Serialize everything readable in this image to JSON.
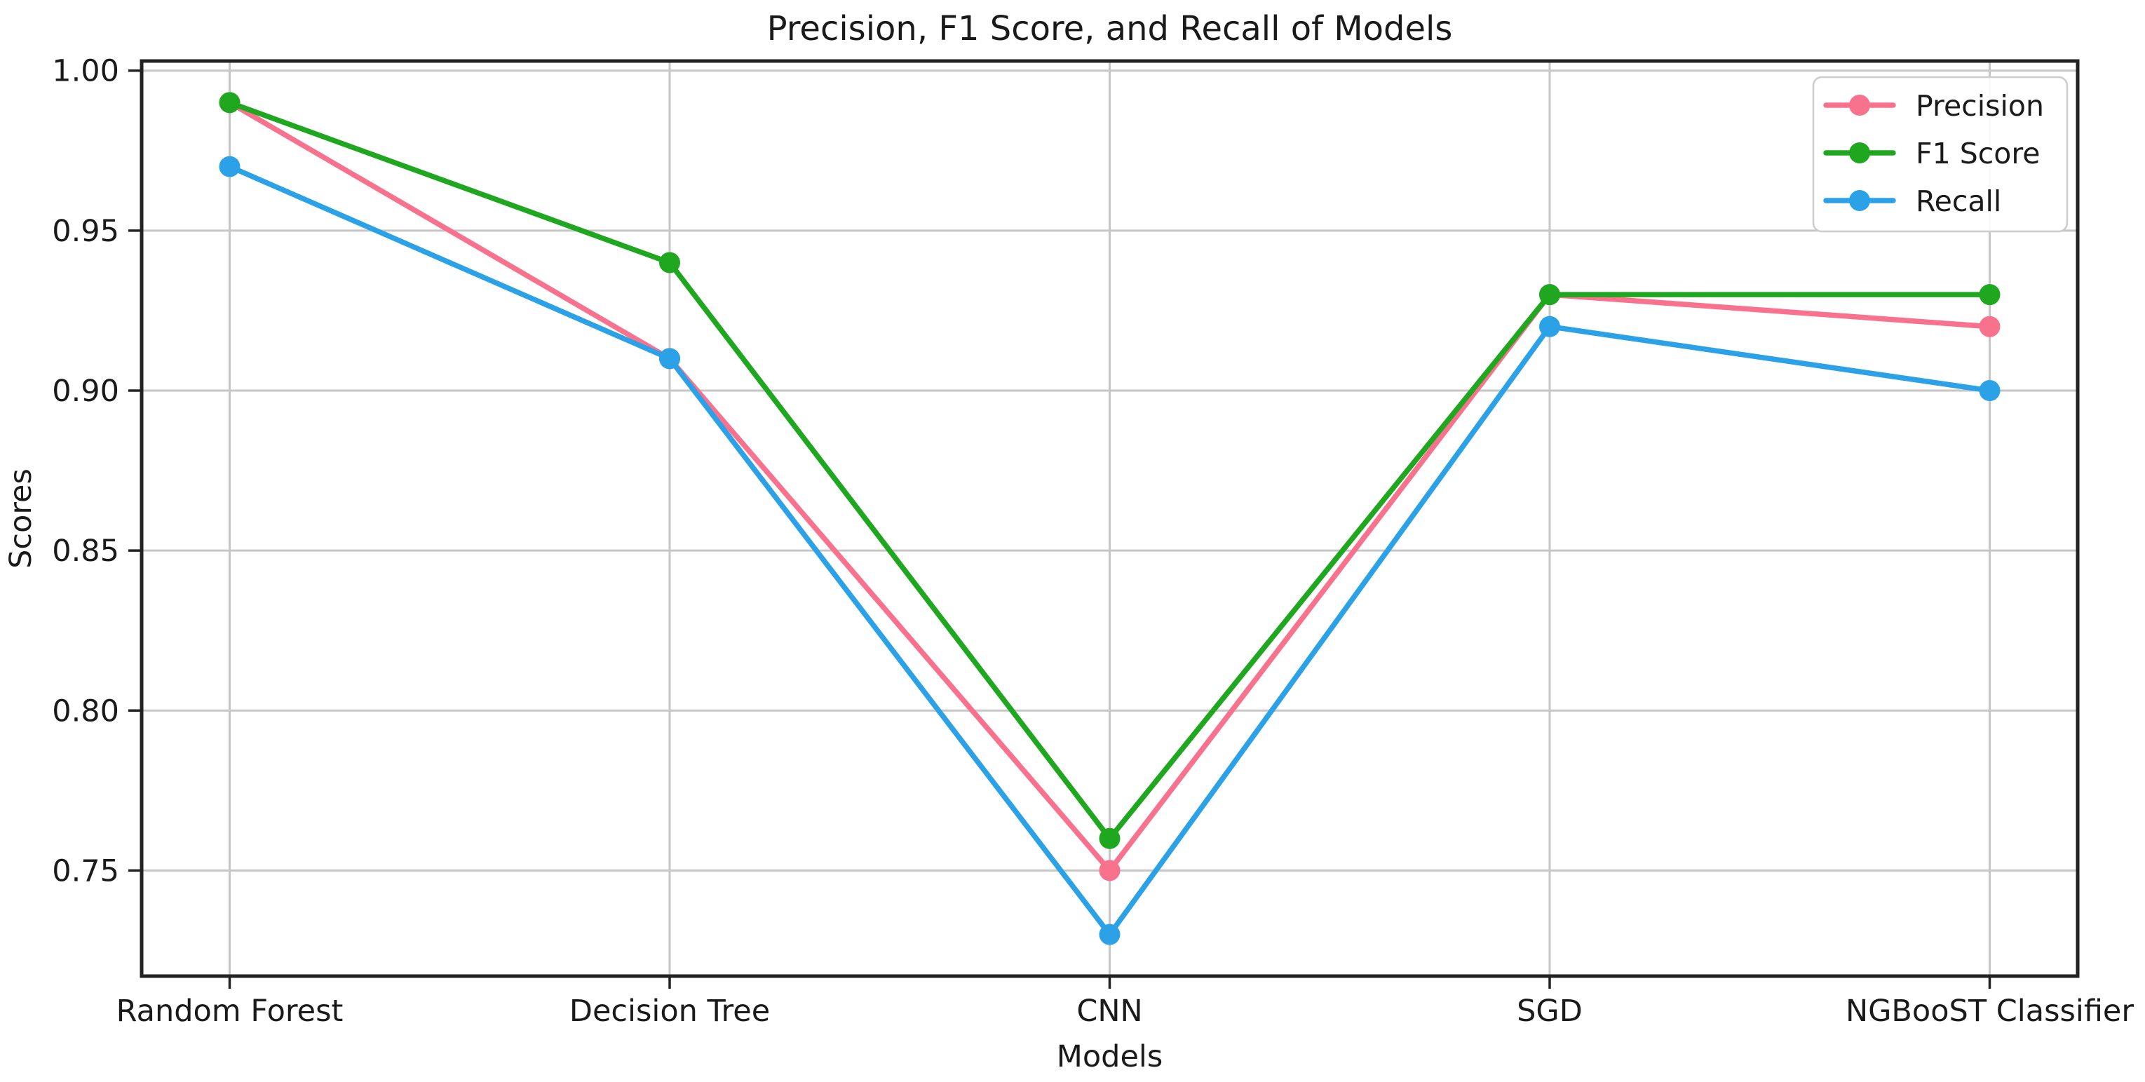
{
  "figure": {
    "background": "#ffffff",
    "grid_color": "#c6c6c6",
    "spine_color": "#222222",
    "text_color": "#1a1a1a",
    "legend_border_color": "#cccccc",
    "legend_background": "#ffffff"
  },
  "chart_data": {
    "type": "line",
    "title": "Precision, F1 Score, and Recall of Models",
    "xlabel": "Models",
    "ylabel": "Scores",
    "categories": [
      "Random Forest",
      "Decision Tree",
      "CNN",
      "SGD",
      "NGBooST Classifier"
    ],
    "series": [
      {
        "name": "Precision",
        "color": "#f8728e",
        "values": [
          0.99,
          0.91,
          0.75,
          0.93,
          0.92
        ]
      },
      {
        "name": "F1 Score",
        "color": "#20a720",
        "values": [
          0.99,
          0.94,
          0.76,
          0.93,
          0.93
        ]
      },
      {
        "name": "Recall",
        "color": "#2ba1e8",
        "values": [
          0.97,
          0.91,
          0.73,
          0.92,
          0.9
        ]
      }
    ],
    "yticks": [
      1.0,
      0.95,
      0.9,
      0.85,
      0.8,
      0.75
    ],
    "ytick_labels": [
      "1.00",
      "0.95",
      "0.90",
      "0.85",
      "0.80",
      "0.75"
    ],
    "ylim": [
      0.717,
      1.003
    ],
    "grid": true,
    "legend_position": "upper right",
    "legend_entries": [
      "Precision",
      "F1 Score",
      "Recall"
    ],
    "marker": "o"
  }
}
